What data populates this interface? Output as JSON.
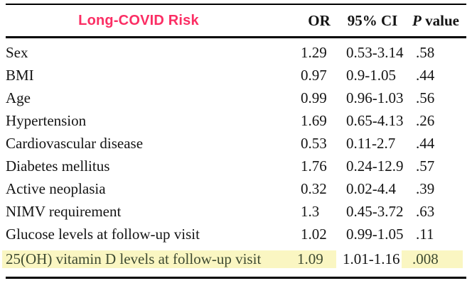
{
  "header": {
    "title": "Long-COVID Risk",
    "title_color": "#fb2e64",
    "columns": {
      "or": "OR",
      "ci": "95% CI",
      "p_italic": "P",
      "p_rest": " value"
    }
  },
  "table": {
    "rows": [
      {
        "label": "Sex",
        "or": "1.29",
        "ci": "0.53-3.14",
        "p": ".58",
        "highlight": false
      },
      {
        "label": "BMI",
        "or": "0.97",
        "ci": "0.9-1.05",
        "p": ".44",
        "highlight": false
      },
      {
        "label": "Age",
        "or": "0.99",
        "ci": "0.96-1.03",
        "p": ".56",
        "highlight": false
      },
      {
        "label": "Hypertension",
        "or": "1.69",
        "ci": "0.65-4.13",
        "p": ".26",
        "highlight": false
      },
      {
        "label": "Cardiovascular disease",
        "or": "0.53",
        "ci": "0.11-2.7",
        "p": ".44",
        "highlight": false
      },
      {
        "label": "Diabetes mellitus",
        "or": "1.76",
        "ci": "0.24-12.9",
        "p": ".57",
        "highlight": false
      },
      {
        "label": "Active neoplasia",
        "or": "0.32",
        "ci": "0.02-4.4",
        "p": ".39",
        "highlight": false
      },
      {
        "label": "NIMV requirement",
        "or": "1.3",
        "ci": "0.45-3.72",
        "p": ".63",
        "highlight": false
      },
      {
        "label": "Glucose levels at follow-up visit",
        "or": "1.02",
        "ci": "0.99-1.05",
        "p": ".11",
        "highlight": false
      },
      {
        "label": "25(OH) vitamin D levels at follow-up visit",
        "or": "1.09",
        "ci": "1.01-1.16",
        "p": ".008",
        "highlight": true
      }
    ],
    "highlight_color": "#faf6c2",
    "highlight_text_color": "#3e4a31"
  }
}
